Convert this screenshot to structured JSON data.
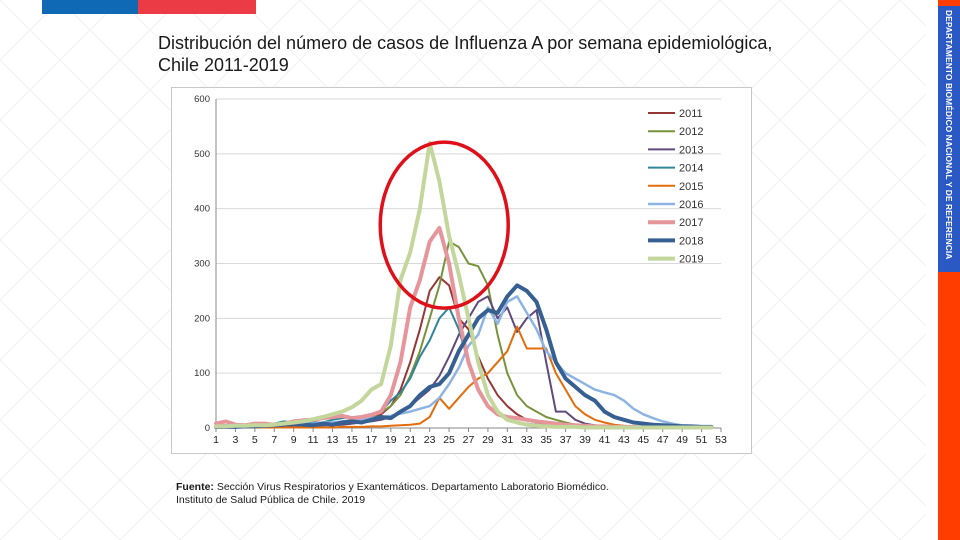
{
  "title": "Distribución del número de casos de Influenza A por semana epidemiológica, Chile 2011-2019",
  "side_label": "DEPARTAMENTO BIOMÉDICO NACIONAL Y DE REFERENCIA",
  "source": {
    "label": "Fuente:",
    "line1": "Sección Virus Respiratorios y Exantemáticos. Departamento Laboratorio Biomédico.",
    "line2": "Instituto de Salud Pública de Chile. 2019"
  },
  "colors": {
    "blue": "#0f69b4",
    "red": "#eb3c46",
    "side_band": "#ff3d00",
    "side_label_bg": "#2b59c3",
    "highlight_circle": "#e0101a"
  },
  "chart_data": {
    "type": "line",
    "title": "",
    "xlabel": "",
    "ylabel": "",
    "ylim": [
      0,
      600
    ],
    "yticks": [
      "0",
      "100",
      "200",
      "300",
      "400",
      "500",
      "600"
    ],
    "xlim": [
      1,
      53
    ],
    "xticks": [
      "1",
      "3",
      "5",
      "7",
      "9",
      "11",
      "13",
      "15",
      "17",
      "19",
      "21",
      "23",
      "25",
      "27",
      "29",
      "31",
      "33",
      "35",
      "37",
      "39",
      "41",
      "43",
      "45",
      "47",
      "49",
      "51",
      "53"
    ],
    "grid": "horizontal",
    "legend": "top-right",
    "annotation": "red circle around weeks 20-29",
    "series": [
      {
        "name": "2011",
        "color": "#953735",
        "width": 2,
        "x": [
          1,
          2,
          3,
          4,
          5,
          6,
          7,
          8,
          9,
          10,
          11,
          12,
          13,
          14,
          15,
          16,
          17,
          18,
          19,
          20,
          21,
          22,
          23,
          24,
          25,
          26,
          27,
          28,
          29,
          30,
          31,
          32,
          33,
          34,
          35,
          36,
          37,
          38,
          39,
          40,
          41,
          42,
          43,
          44,
          45,
          46,
          47,
          48,
          49,
          50,
          51,
          52
        ],
        "y": [
          2,
          2,
          1,
          2,
          2,
          3,
          2,
          3,
          3,
          4,
          4,
          5,
          6,
          8,
          10,
          14,
          18,
          25,
          40,
          70,
          120,
          180,
          250,
          275,
          260,
          200,
          180,
          130,
          90,
          60,
          40,
          25,
          15,
          10,
          8,
          5,
          4,
          3,
          2,
          2,
          2,
          2,
          1,
          1,
          1,
          1,
          1,
          1,
          1,
          1,
          1,
          1
        ]
      },
      {
        "name": "2012",
        "color": "#77933c",
        "width": 2,
        "x": [
          1,
          2,
          3,
          4,
          5,
          6,
          7,
          8,
          9,
          10,
          11,
          12,
          13,
          14,
          15,
          16,
          17,
          18,
          19,
          20,
          21,
          22,
          23,
          24,
          25,
          26,
          27,
          28,
          29,
          30,
          31,
          32,
          33,
          34,
          35,
          36,
          37,
          38,
          39,
          40,
          41,
          42,
          43,
          44,
          45,
          46,
          47,
          48,
          49,
          50,
          51,
          52
        ],
        "y": [
          2,
          2,
          2,
          2,
          3,
          3,
          3,
          4,
          4,
          5,
          6,
          7,
          8,
          10,
          12,
          15,
          20,
          28,
          40,
          60,
          95,
          140,
          200,
          260,
          340,
          330,
          300,
          295,
          260,
          170,
          100,
          60,
          40,
          30,
          20,
          15,
          10,
          6,
          4,
          3,
          2,
          2,
          2,
          1,
          1,
          1,
          1,
          1,
          1,
          1,
          1,
          1
        ]
      },
      {
        "name": "2013",
        "color": "#604a7b",
        "width": 2,
        "x": [
          1,
          2,
          3,
          4,
          5,
          6,
          7,
          8,
          9,
          10,
          11,
          12,
          13,
          14,
          15,
          16,
          17,
          18,
          19,
          20,
          21,
          22,
          23,
          24,
          25,
          26,
          27,
          28,
          29,
          30,
          31,
          32,
          33,
          34,
          35,
          36,
          37,
          38,
          39,
          40,
          41,
          42,
          43,
          44,
          45,
          46,
          47,
          48,
          49,
          50,
          51,
          52
        ],
        "y": [
          2,
          2,
          2,
          2,
          2,
          3,
          3,
          3,
          3,
          4,
          4,
          5,
          5,
          6,
          8,
          10,
          12,
          15,
          20,
          28,
          40,
          55,
          70,
          95,
          130,
          170,
          200,
          230,
          240,
          200,
          220,
          175,
          200,
          215,
          120,
          30,
          30,
          15,
          8,
          5,
          3,
          2,
          2,
          2,
          1,
          1,
          1,
          1,
          1,
          1,
          1,
          1
        ]
      },
      {
        "name": "2014",
        "color": "#31859c",
        "width": 2,
        "x": [
          1,
          2,
          3,
          4,
          5,
          6,
          7,
          8,
          9,
          10,
          11,
          12,
          13,
          14,
          15,
          16,
          17,
          18,
          19,
          20,
          21,
          22,
          23,
          24,
          25,
          26,
          27,
          28,
          29,
          30,
          31,
          32,
          33,
          34,
          35,
          36,
          37,
          38,
          39,
          40,
          41,
          42,
          43,
          44,
          45,
          46,
          47,
          48,
          49,
          50,
          51,
          52
        ],
        "y": [
          3,
          3,
          2,
          3,
          4,
          5,
          8,
          12,
          10,
          8,
          10,
          10,
          15,
          18,
          20,
          18,
          22,
          30,
          50,
          65,
          90,
          130,
          160,
          200,
          220,
          180,
          120,
          70,
          40,
          25,
          15,
          10,
          8,
          6,
          5,
          4,
          3,
          3,
          2,
          2,
          2,
          2,
          1,
          1,
          1,
          1,
          1,
          1,
          1,
          1,
          1,
          1
        ]
      },
      {
        "name": "2015",
        "color": "#e46c0a",
        "width": 2,
        "x": [
          1,
          2,
          3,
          4,
          5,
          6,
          7,
          8,
          9,
          10,
          11,
          12,
          13,
          14,
          15,
          16,
          17,
          18,
          19,
          20,
          21,
          22,
          23,
          24,
          25,
          26,
          27,
          28,
          29,
          30,
          31,
          32,
          33,
          34,
          35,
          36,
          37,
          38,
          39,
          40,
          41,
          42,
          43,
          44,
          45,
          46,
          47,
          48,
          49,
          50,
          51,
          52
        ],
        "y": [
          1,
          1,
          1,
          1,
          1,
          1,
          1,
          1,
          1,
          1,
          1,
          1,
          1,
          2,
          2,
          2,
          3,
          3,
          4,
          5,
          6,
          8,
          20,
          55,
          35,
          55,
          75,
          90,
          100,
          120,
          140,
          185,
          145,
          145,
          145,
          100,
          70,
          40,
          25,
          15,
          10,
          6,
          4,
          3,
          2,
          2,
          2,
          1,
          1,
          1,
          1,
          1
        ]
      },
      {
        "name": "2016",
        "color": "#8eb4e3",
        "width": 2.5,
        "x": [
          1,
          2,
          3,
          4,
          5,
          6,
          7,
          8,
          9,
          10,
          11,
          12,
          13,
          14,
          15,
          16,
          17,
          18,
          19,
          20,
          21,
          22,
          23,
          24,
          25,
          26,
          27,
          28,
          29,
          30,
          31,
          32,
          33,
          34,
          35,
          36,
          37,
          38,
          39,
          40,
          41,
          42,
          43,
          44,
          45,
          46,
          47,
          48,
          49,
          50,
          51,
          52
        ],
        "y": [
          5,
          5,
          4,
          5,
          5,
          6,
          6,
          7,
          7,
          8,
          8,
          10,
          10,
          12,
          14,
          16,
          18,
          20,
          22,
          26,
          30,
          35,
          40,
          55,
          80,
          110,
          150,
          170,
          220,
          190,
          230,
          240,
          210,
          180,
          140,
          120,
          100,
          90,
          80,
          70,
          65,
          60,
          50,
          35,
          25,
          18,
          12,
          8,
          5,
          4,
          3,
          2
        ]
      },
      {
        "name": "2017",
        "color": "#e6959a",
        "width": 4,
        "x": [
          1,
          2,
          3,
          4,
          5,
          6,
          7,
          8,
          9,
          10,
          11,
          12,
          13,
          14,
          15,
          16,
          17,
          18,
          19,
          20,
          21,
          22,
          23,
          24,
          25,
          26,
          27,
          28,
          29,
          30,
          31,
          32,
          33,
          34,
          35,
          36,
          37,
          38,
          39,
          40,
          41,
          42,
          43,
          44,
          45,
          46,
          47,
          48,
          49,
          50,
          51,
          52
        ],
        "y": [
          8,
          12,
          6,
          5,
          8,
          8,
          6,
          8,
          12,
          14,
          15,
          18,
          20,
          22,
          18,
          20,
          24,
          30,
          60,
          120,
          220,
          270,
          340,
          365,
          300,
          200,
          120,
          70,
          40,
          25,
          20,
          18,
          15,
          12,
          10,
          8,
          6,
          5,
          4,
          3,
          3,
          2,
          2,
          2,
          1,
          1,
          1,
          1,
          1,
          1,
          1,
          1
        ]
      },
      {
        "name": "2018",
        "color": "#376092",
        "width": 4,
        "x": [
          1,
          2,
          3,
          4,
          5,
          6,
          7,
          8,
          9,
          10,
          11,
          12,
          13,
          14,
          15,
          16,
          17,
          18,
          19,
          20,
          21,
          22,
          23,
          24,
          25,
          26,
          27,
          28,
          29,
          30,
          31,
          32,
          33,
          34,
          35,
          36,
          37,
          38,
          39,
          40,
          41,
          42,
          43,
          44,
          45,
          46,
          47,
          48,
          49,
          50,
          51,
          52
        ],
        "y": [
          2,
          2,
          2,
          3,
          3,
          4,
          5,
          6,
          8,
          6,
          5,
          8,
          6,
          10,
          12,
          10,
          15,
          20,
          18,
          30,
          40,
          60,
          75,
          80,
          100,
          140,
          170,
          200,
          215,
          210,
          240,
          260,
          250,
          230,
          180,
          120,
          90,
          75,
          60,
          50,
          30,
          20,
          15,
          10,
          8,
          6,
          5,
          4,
          3,
          3,
          2,
          2
        ]
      },
      {
        "name": "2019",
        "color": "#c3d69b",
        "width": 4,
        "x": [
          1,
          2,
          3,
          4,
          5,
          6,
          7,
          8,
          9,
          10,
          11,
          12,
          13,
          14,
          15,
          16,
          17,
          18,
          19,
          20,
          21,
          22,
          23,
          24,
          25,
          26,
          27,
          28,
          29,
          30,
          31,
          32,
          33,
          34,
          35,
          36,
          37,
          38,
          39,
          40,
          41,
          42,
          43,
          44,
          45,
          46,
          47,
          48,
          49,
          50,
          51,
          52
        ],
        "y": [
          3,
          3,
          4,
          4,
          5,
          5,
          6,
          8,
          10,
          12,
          16,
          20,
          25,
          30,
          38,
          50,
          70,
          80,
          150,
          270,
          320,
          400,
          520,
          450,
          350,
          280,
          200,
          120,
          60,
          30,
          15,
          10,
          6,
          4,
          3,
          2,
          2,
          2,
          1,
          1,
          1,
          1,
          1,
          1,
          1,
          1,
          1,
          1,
          1,
          1,
          1,
          1
        ]
      }
    ]
  }
}
